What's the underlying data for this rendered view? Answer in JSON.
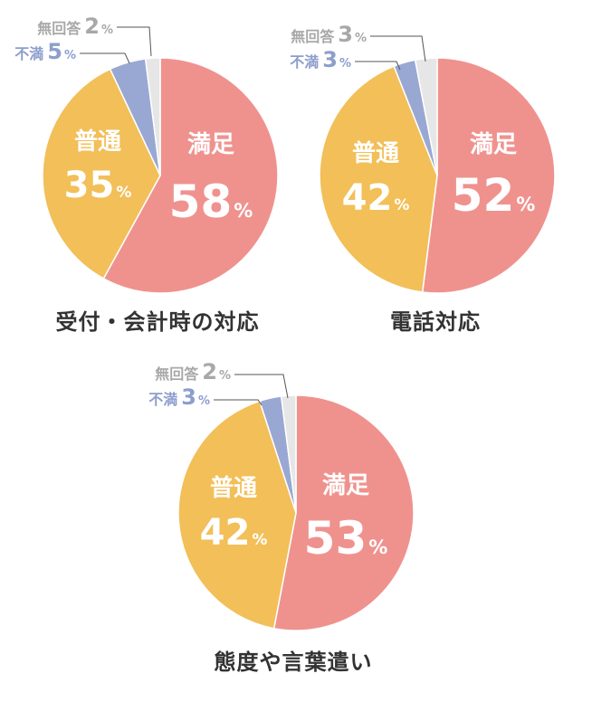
{
  "colors": {
    "satisfied": "#ef928e",
    "normal": "#f2bf58",
    "dissatisfied": "#99a8d3",
    "no_answer": "#e6e6e6",
    "label_light": "#ffffff",
    "label_dark": "#333333",
    "label_gray": "#a8a8a8",
    "label_blue": "#8d9ecd"
  },
  "chart_data": [
    {
      "type": "pie",
      "title": "受付・会計時の対応",
      "series": [
        {
          "label": "満足",
          "value": 58,
          "unit": "%"
        },
        {
          "label": "普通",
          "value": 35,
          "unit": "%"
        },
        {
          "label": "不満",
          "value": 5,
          "unit": "%"
        },
        {
          "label": "無回答",
          "value": 2,
          "unit": "%"
        }
      ]
    },
    {
      "type": "pie",
      "title": "電話対応",
      "series": [
        {
          "label": "満足",
          "value": 52,
          "unit": "%"
        },
        {
          "label": "普通",
          "value": 42,
          "unit": "%"
        },
        {
          "label": "不満",
          "value": 3,
          "unit": "%"
        },
        {
          "label": "無回答",
          "value": 3,
          "unit": "%"
        }
      ]
    },
    {
      "type": "pie",
      "title": "態度や言葉遣い",
      "series": [
        {
          "label": "満足",
          "value": 53,
          "unit": "%"
        },
        {
          "label": "普通",
          "value": 42,
          "unit": "%"
        },
        {
          "label": "不満",
          "value": 3,
          "unit": "%"
        },
        {
          "label": "無回答",
          "value": 2,
          "unit": "%"
        }
      ]
    }
  ]
}
